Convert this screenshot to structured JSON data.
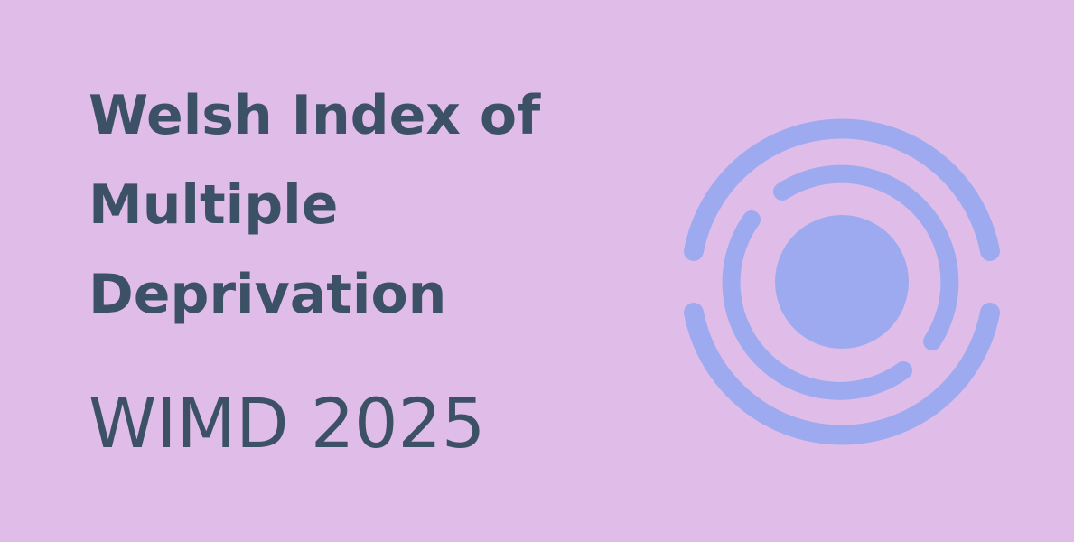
{
  "banner": {
    "title_lines": [
      "Welsh Index of",
      "Multiple",
      "Deprivation"
    ],
    "subtitle": "WIMD 2025"
  }
}
